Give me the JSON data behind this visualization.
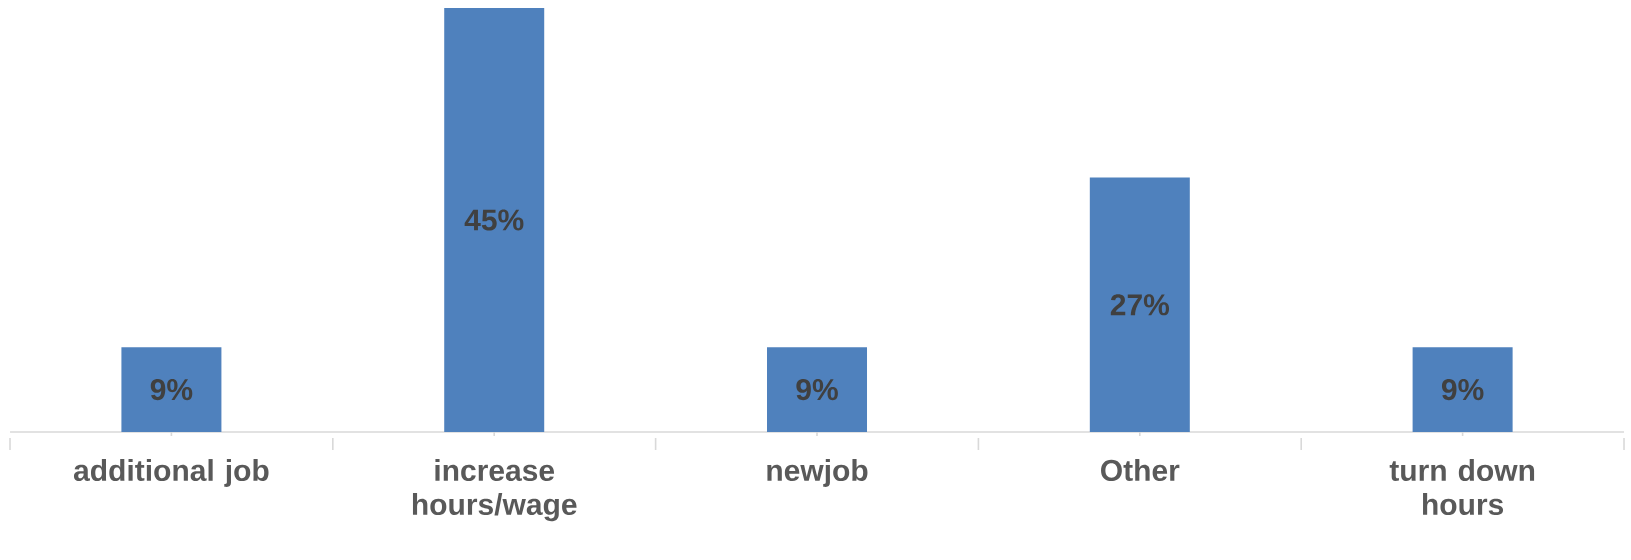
{
  "chart_data": {
    "type": "bar",
    "categories": [
      "additional job",
      "increase hours/wage",
      "newjob",
      "Other",
      "turn down hours"
    ],
    "values": [
      9,
      45,
      9,
      27,
      9
    ],
    "color": "#4f81bd",
    "value_labels": [
      "9%",
      "45%",
      "9%",
      "27%",
      "9%"
    ],
    "tick_labels": "x"
  }
}
